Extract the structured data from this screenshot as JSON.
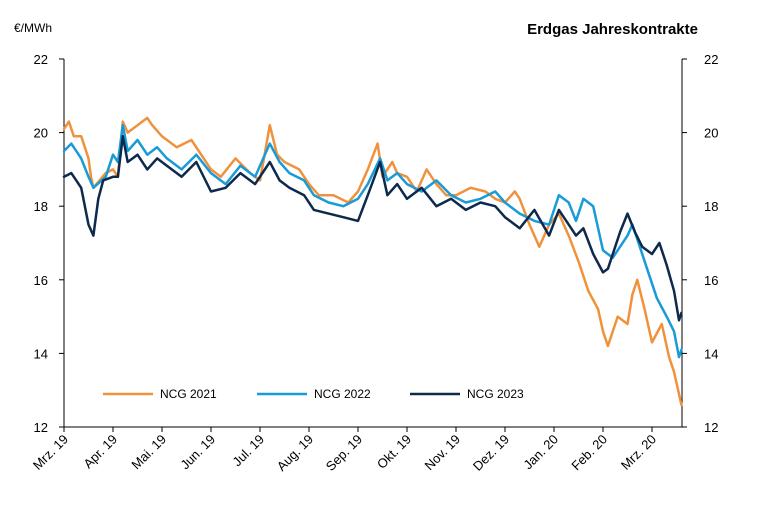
{
  "chart_data": {
    "type": "line",
    "title": "Erdgas Jahreskontrakte",
    "ylabel": "€/MWh",
    "xlabel": "",
    "ylim": [
      12,
      22
    ],
    "yticks": [
      "12",
      "14",
      "16",
      "18",
      "20",
      "22"
    ],
    "x_ticks": [
      "Mrz. 19",
      "Apr. 19",
      "Mai. 19",
      "Jun. 19",
      "Jul. 19",
      "Aug. 19",
      "Sep. 19",
      "Okt. 19",
      "Nov. 19",
      "Dez. 19",
      "Jan. 20",
      "Feb. 20",
      "Mrz. 20"
    ],
    "x_unit": "month index (0 = Mrz. 19)",
    "legend_position": "bottom-left",
    "series": [
      {
        "name": "NCG 2021",
        "color": "#f0923c",
        "x": [
          0,
          0.1,
          0.2,
          0.35,
          0.5,
          0.55,
          0.6,
          0.85,
          1.0,
          1.1,
          1.2,
          1.3,
          1.5,
          1.7,
          1.8,
          2.0,
          2.3,
          2.6,
          3.0,
          3.2,
          3.5,
          3.8,
          4.0,
          4.2,
          4.35,
          4.5,
          4.8,
          5.0,
          5.2,
          5.5,
          5.8,
          6.0,
          6.2,
          6.4,
          6.5,
          6.7,
          6.8,
          7.0,
          7.2,
          7.4,
          7.6,
          7.8,
          8.0,
          8.3,
          8.6,
          8.8,
          9.0,
          9.2,
          9.3,
          9.5,
          9.7,
          9.9,
          10.1,
          10.3,
          10.5,
          10.7,
          10.9,
          11.0,
          11.1,
          11.3,
          11.5,
          11.6,
          11.7,
          11.85,
          12.0,
          12.2,
          12.35,
          12.45,
          12.55,
          12.6
        ],
        "values": [
          20.1,
          20.3,
          19.9,
          19.9,
          19.3,
          18.8,
          18.5,
          18.9,
          19.0,
          18.8,
          20.3,
          20.0,
          20.2,
          20.4,
          20.2,
          19.9,
          19.6,
          19.8,
          19.0,
          18.8,
          19.3,
          18.9,
          18.7,
          20.2,
          19.4,
          19.2,
          19.0,
          18.6,
          18.3,
          18.3,
          18.1,
          18.4,
          19.0,
          19.7,
          18.8,
          19.2,
          18.9,
          18.8,
          18.4,
          19.0,
          18.6,
          18.3,
          18.3,
          18.5,
          18.4,
          18.2,
          18.1,
          18.4,
          18.2,
          17.5,
          16.9,
          17.5,
          17.8,
          17.2,
          16.5,
          15.7,
          15.2,
          14.6,
          14.2,
          15.0,
          14.8,
          15.6,
          16.0,
          15.2,
          14.3,
          14.8,
          13.9,
          13.5,
          12.9,
          12.6
        ]
      },
      {
        "name": "NCG 2022",
        "color": "#1a9ad6",
        "x": [
          0,
          0.15,
          0.35,
          0.5,
          0.6,
          0.85,
          1.0,
          1.1,
          1.2,
          1.3,
          1.5,
          1.7,
          1.9,
          2.1,
          2.4,
          2.7,
          3.0,
          3.3,
          3.6,
          3.9,
          4.2,
          4.4,
          4.6,
          4.9,
          5.1,
          5.4,
          5.7,
          6.0,
          6.2,
          6.45,
          6.6,
          6.8,
          7.0,
          7.3,
          7.6,
          7.9,
          8.2,
          8.5,
          8.8,
          9.0,
          9.3,
          9.6,
          9.9,
          10.1,
          10.3,
          10.45,
          10.6,
          10.8,
          11.0,
          11.2,
          11.35,
          11.5,
          11.6,
          11.75,
          11.9,
          12.1,
          12.3,
          12.45,
          12.55,
          12.6
        ],
        "values": [
          19.5,
          19.7,
          19.3,
          18.8,
          18.5,
          18.8,
          19.4,
          19.2,
          20.2,
          19.5,
          19.8,
          19.4,
          19.6,
          19.3,
          19.0,
          19.4,
          18.9,
          18.6,
          19.1,
          18.8,
          19.7,
          19.2,
          18.9,
          18.7,
          18.3,
          18.1,
          18.0,
          18.2,
          18.6,
          19.3,
          18.7,
          18.9,
          18.6,
          18.4,
          18.7,
          18.3,
          18.1,
          18.2,
          18.4,
          18.1,
          17.8,
          17.6,
          17.5,
          18.3,
          18.1,
          17.6,
          18.2,
          18.0,
          16.8,
          16.6,
          16.9,
          17.2,
          17.5,
          16.9,
          16.3,
          15.5,
          15.0,
          14.6,
          13.9,
          14.1
        ]
      },
      {
        "name": "NCG 2023",
        "color": "#0d2a4d",
        "x": [
          0,
          0.15,
          0.35,
          0.5,
          0.6,
          0.7,
          0.8,
          1.0,
          1.1,
          1.2,
          1.3,
          1.5,
          1.7,
          1.9,
          2.1,
          2.4,
          2.7,
          3.0,
          3.3,
          3.6,
          3.9,
          4.2,
          4.4,
          4.6,
          4.9,
          5.1,
          5.4,
          5.7,
          6.0,
          6.2,
          6.45,
          6.6,
          6.8,
          7.0,
          7.3,
          7.6,
          7.9,
          8.2,
          8.5,
          8.8,
          9.0,
          9.3,
          9.6,
          9.9,
          10.1,
          10.3,
          10.45,
          10.6,
          10.8,
          11.0,
          11.1,
          11.2,
          11.35,
          11.5,
          11.65,
          11.8,
          12.0,
          12.15,
          12.3,
          12.45,
          12.55,
          12.6
        ],
        "values": [
          18.8,
          18.9,
          18.5,
          17.5,
          17.2,
          18.2,
          18.7,
          18.8,
          18.8,
          19.9,
          19.2,
          19.4,
          19.0,
          19.3,
          19.1,
          18.8,
          19.2,
          18.4,
          18.5,
          18.9,
          18.6,
          19.2,
          18.7,
          18.5,
          18.3,
          17.9,
          17.8,
          17.7,
          17.6,
          18.3,
          19.2,
          18.3,
          18.6,
          18.2,
          18.5,
          18.0,
          18.2,
          17.9,
          18.1,
          18.0,
          17.7,
          17.4,
          17.9,
          17.2,
          17.9,
          17.5,
          17.2,
          17.4,
          16.7,
          16.2,
          16.3,
          16.7,
          17.3,
          17.8,
          17.3,
          16.9,
          16.7,
          17.0,
          16.4,
          15.7,
          14.9,
          15.1
        ]
      }
    ]
  }
}
